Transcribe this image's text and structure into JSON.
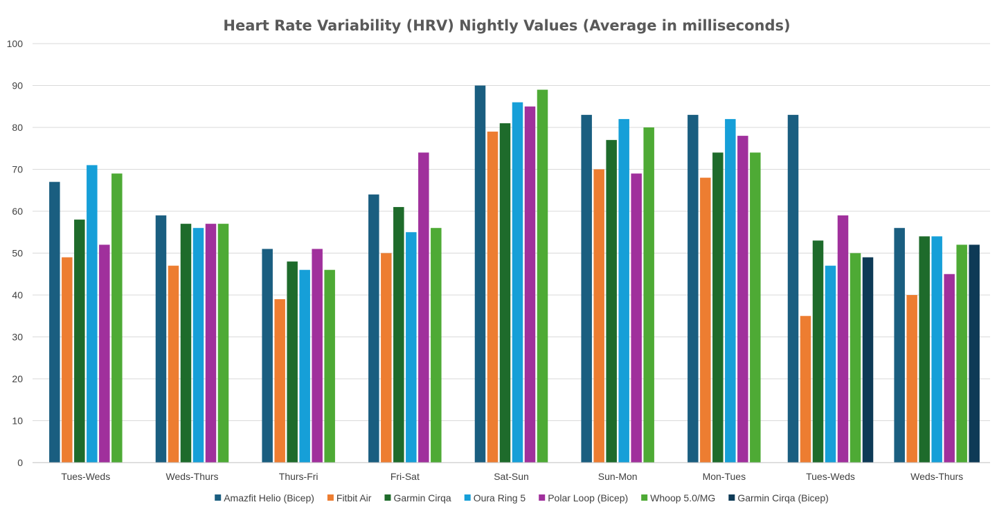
{
  "chart_data": {
    "type": "bar",
    "title": "Heart Rate Variability (HRV) Nightly Values (Average in milliseconds)",
    "xlabel": "",
    "ylabel": "",
    "ylim": [
      0,
      100
    ],
    "yticks": [
      0,
      10,
      20,
      30,
      40,
      50,
      60,
      70,
      80,
      90,
      100
    ],
    "grid": true,
    "legend_position": "bottom",
    "categories": [
      "Tues-Weds",
      "Weds-Thurs",
      "Thurs-Fri",
      "Fri-Sat",
      "Sat-Sun",
      "Sun-Mon",
      "Mon-Tues",
      "Tues-Weds",
      "Weds-Thurs"
    ],
    "series": [
      {
        "name": "Amazfit Helio (Bicep)",
        "color": "#1a5e80",
        "values": [
          67,
          59,
          51,
          64,
          90,
          83,
          83,
          83,
          56
        ]
      },
      {
        "name": "Fitbit Air",
        "color": "#ed7d31",
        "values": [
          49,
          47,
          39,
          50,
          79,
          70,
          68,
          35,
          40
        ]
      },
      {
        "name": "Garmin Cirqa",
        "color": "#1e6b2b",
        "values": [
          58,
          57,
          48,
          61,
          81,
          77,
          74,
          53,
          54
        ]
      },
      {
        "name": "Oura Ring 5",
        "color": "#169fd8",
        "values": [
          71,
          56,
          46,
          55,
          86,
          82,
          82,
          47,
          54
        ]
      },
      {
        "name": "Polar Loop (Bicep)",
        "color": "#a0309c",
        "values": [
          52,
          57,
          51,
          74,
          85,
          69,
          78,
          59,
          45
        ]
      },
      {
        "name": "Whoop 5.0/MG",
        "color": "#4eaa35",
        "values": [
          69,
          57,
          46,
          56,
          89,
          80,
          74,
          50,
          52
        ]
      },
      {
        "name": "Garmin Cirqa (Bicep)",
        "color": "#0e3a56",
        "values": [
          null,
          null,
          null,
          null,
          null,
          null,
          null,
          49,
          52
        ]
      }
    ]
  }
}
